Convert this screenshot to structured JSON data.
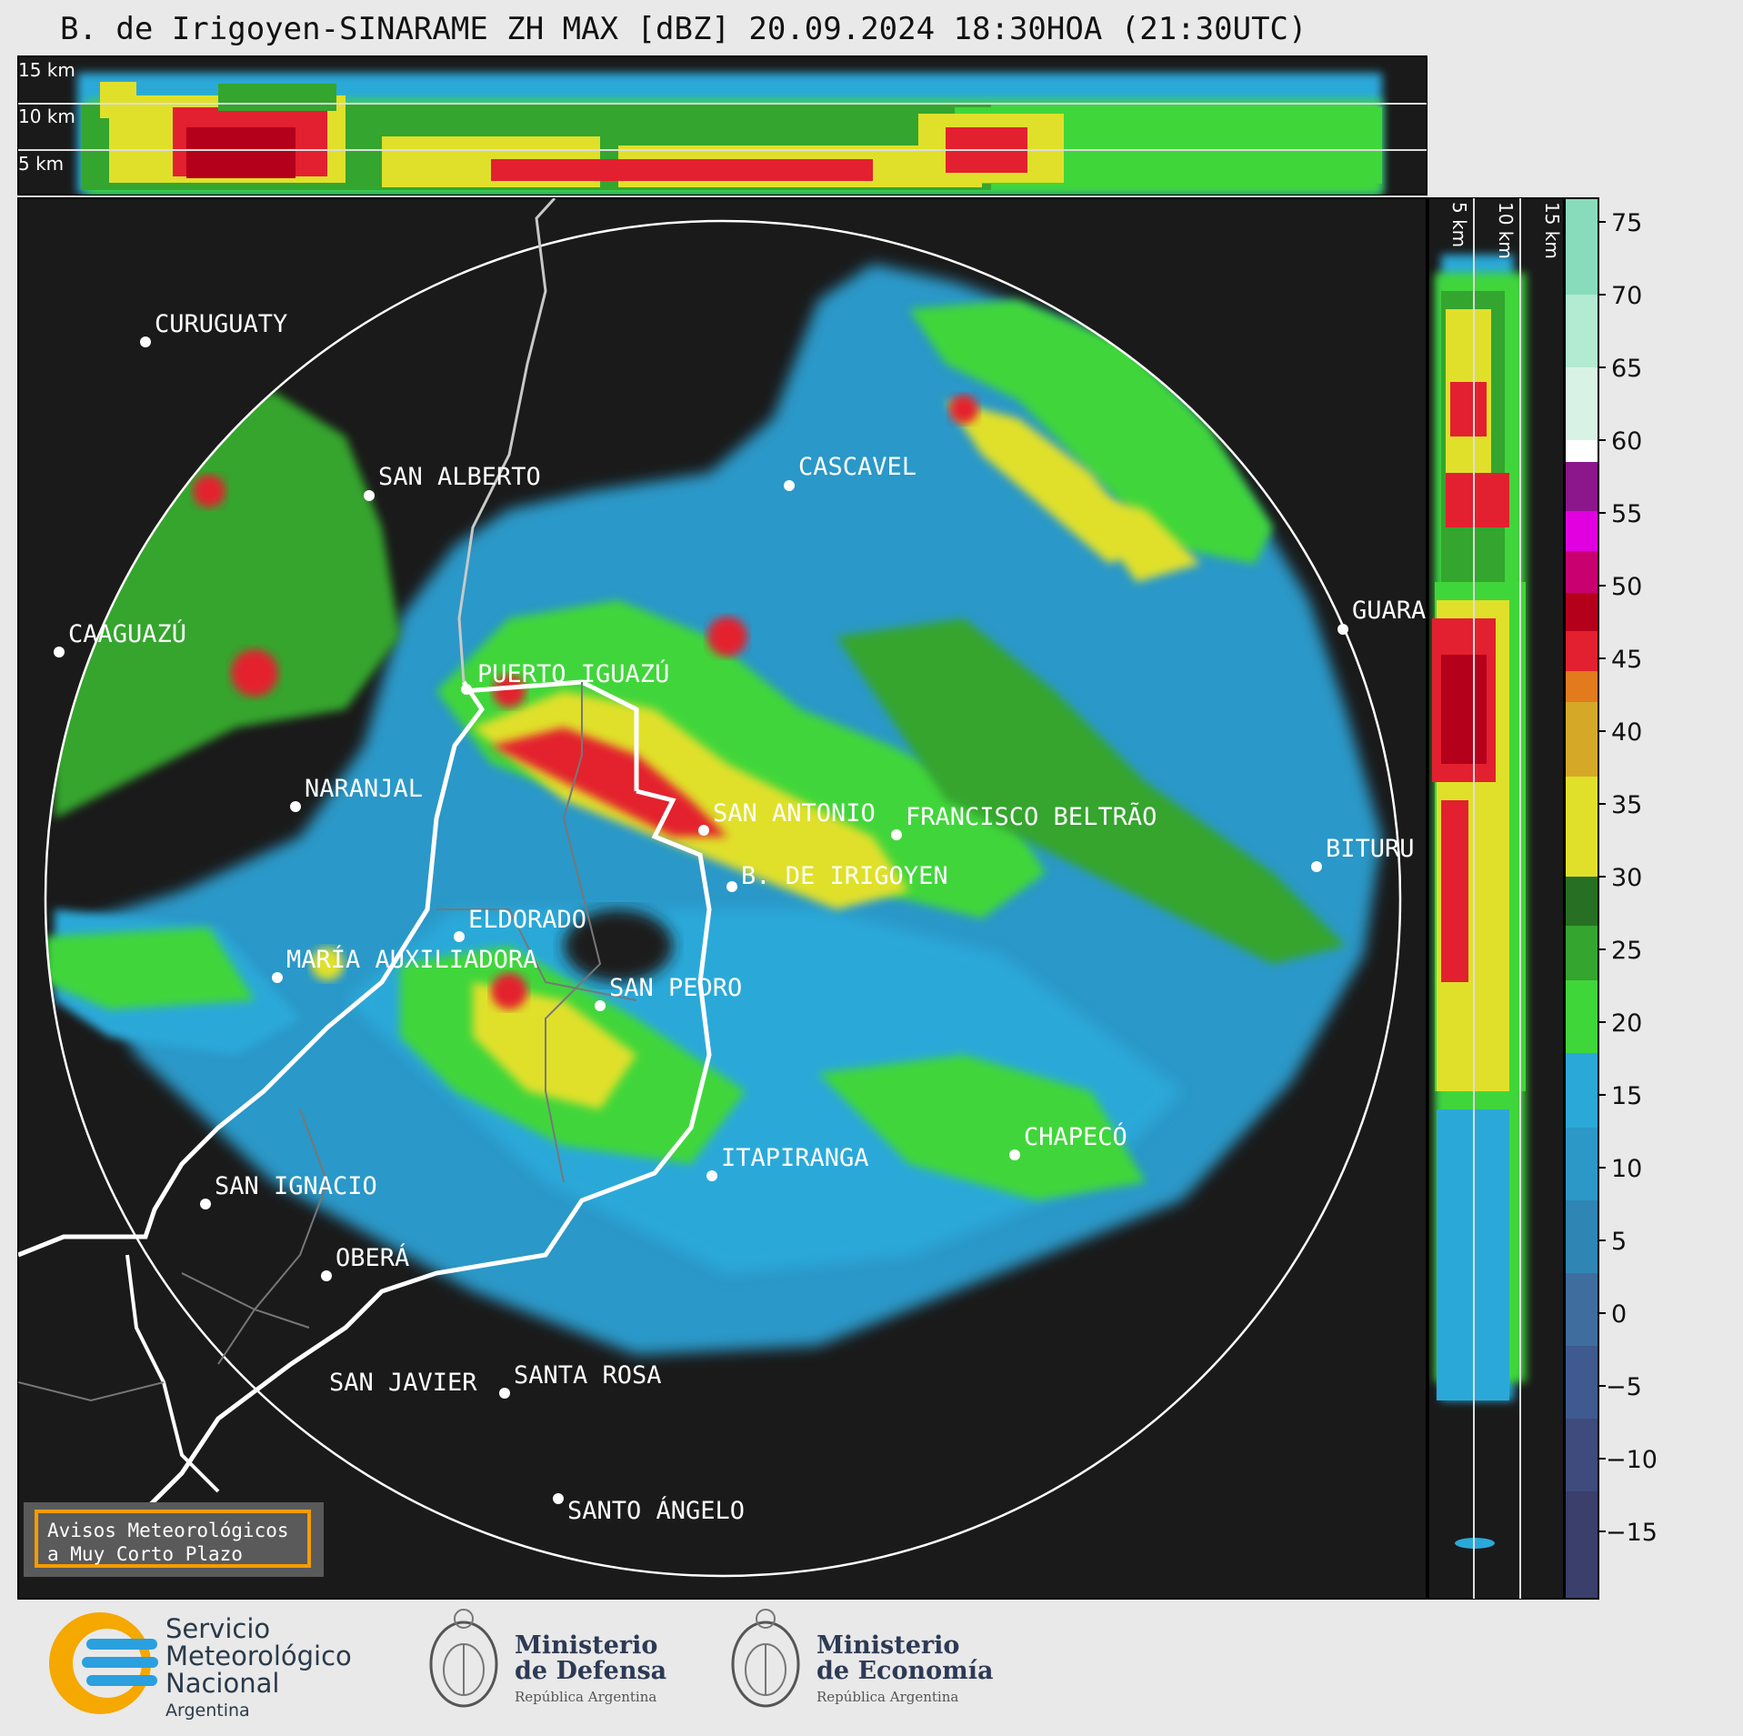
{
  "title": "B. de Irigoyen-SINARAME ZH MAX [dBZ] 20.09.2024 18:30HOA (21:30UTC)",
  "top_panel": {
    "km_labels": [
      "15 km",
      "10 km",
      "5 km"
    ]
  },
  "side_panel": {
    "km_labels": [
      "5 km",
      "10 km",
      "15 km"
    ]
  },
  "colorbar": {
    "unit": "dBZ",
    "ticks": [
      "75",
      "70",
      "65",
      "60",
      "55",
      "50",
      "45",
      "40",
      "35",
      "30",
      "25",
      "20",
      "15",
      "10",
      "5",
      "0",
      "−5",
      "−10",
      "−15"
    ],
    "colors": {
      "c_m15": "#3a3f6b",
      "c_m10": "#3e4b7c",
      "c_m5": "#3f5a8e",
      "c_0": "#3f6e9e",
      "c_5": "#2f86b4",
      "c_10": "#2b98c8",
      "c_15": "#2aa9d9",
      "c_20": "#3fd63a",
      "c_25": "#34a52e",
      "c_30": "#276f22",
      "c_35": "#e0e02a",
      "c_40": "#d6a828",
      "c_45": "#e27a1e",
      "c_48": "#e3202f",
      "c_50": "#b4001b",
      "c_55": "#c80070",
      "c_58": "#e100e0",
      "c_60": "#8c168c",
      "c_62": "#ffffff",
      "c_65": "#d8f3e6",
      "c_70": "#b2ead2",
      "c_75": "#88dcbc"
    }
  },
  "cities": [
    {
      "name": "CURUGUATY"
    },
    {
      "name": "SAN ALBERTO"
    },
    {
      "name": "CASCAVEL"
    },
    {
      "name": "CAAGUAZÚ"
    },
    {
      "name": "GUARA"
    },
    {
      "name": "PUERTO IGUAZÚ"
    },
    {
      "name": "NARANJAL"
    },
    {
      "name": "SAN ANTONIO"
    },
    {
      "name": "FRANCISCO BELTRÃO"
    },
    {
      "name": "BITURU"
    },
    {
      "name": "B. DE IRIGOYEN"
    },
    {
      "name": "ELDORADO"
    },
    {
      "name": "MARÍA AUXILIADORA"
    },
    {
      "name": "SAN PEDRO"
    },
    {
      "name": "CHAPECÓ"
    },
    {
      "name": "ITAPIRANGA"
    },
    {
      "name": "SAN IGNACIO"
    },
    {
      "name": "OBERÁ"
    },
    {
      "name": "SAN JAVIER"
    },
    {
      "name": "SANTA ROSA"
    },
    {
      "name": "SANTO ÁNGELO"
    }
  ],
  "notice": {
    "line1": "Avisos Meteorológicos",
    "line2": "a Muy Corto Plazo"
  },
  "footer": {
    "smn": {
      "line1": "Servicio",
      "line2": "Meteorológico",
      "line3": "Nacional",
      "line4": "Argentina"
    },
    "defensa": {
      "line1": "Ministerio",
      "line2": "de Defensa",
      "sub": "República Argentina"
    },
    "economia": {
      "line1": "Ministerio",
      "line2": "de Economía",
      "sub": "República Argentina"
    }
  }
}
